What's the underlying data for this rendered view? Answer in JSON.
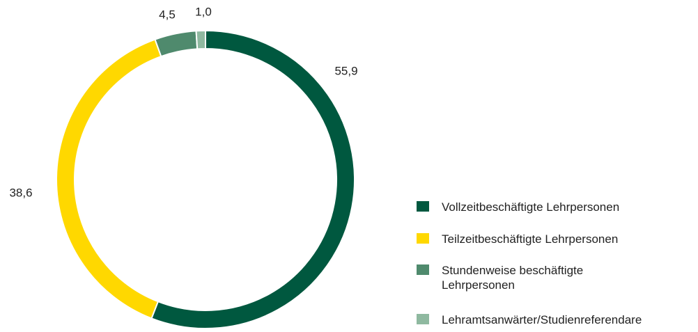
{
  "chart_data": {
    "type": "donut",
    "categories": [
      "Vollzeitbeschäftigte Lehrpersonen",
      "Teilzeitbeschäftigte Lehrpersonen",
      "Stundenweise beschäftigte Lehrpersonen",
      "Lehramtsanwärter/Studienreferendare"
    ],
    "values": [
      55.9,
      38.6,
      4.5,
      1.0
    ],
    "value_labels": [
      "55,9",
      "38,6",
      "4,5",
      "1,0"
    ],
    "colors": [
      "#00583f",
      "#ffd800",
      "#4f8a6d",
      "#8fb9a0"
    ],
    "legend": "right"
  }
}
